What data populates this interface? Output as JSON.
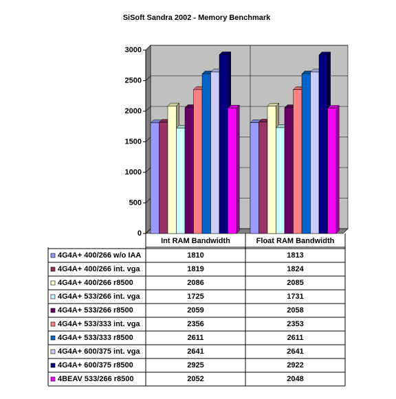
{
  "chart_data": {
    "type": "bar",
    "title": "SiSoft Sandra 2002 - Memory Benchmark",
    "categories": [
      "Int RAM Bandwidth",
      "Float RAM Bandwidth"
    ],
    "series": [
      {
        "name": "4G4A+ 400/266 w/o IAA",
        "color": "#9999ff",
        "values": [
          1810,
          1813
        ]
      },
      {
        "name": "4G4A+ 400/266 int. vga",
        "color": "#993366",
        "values": [
          1819,
          1824
        ]
      },
      {
        "name": "4G4A+ 400/266 r8500",
        "color": "#ffffcc",
        "values": [
          2086,
          2085
        ]
      },
      {
        "name": "4G4A+ 533/266 int. vga",
        "color": "#ccffff",
        "values": [
          1725,
          1731
        ]
      },
      {
        "name": "4G4A+ 533/266 r8500",
        "color": "#660066",
        "values": [
          2059,
          2058
        ]
      },
      {
        "name": "4G4A+ 533/333 int. vga",
        "color": "#ff8080",
        "values": [
          2356,
          2353
        ]
      },
      {
        "name": "4G4A+ 533/333 r8500",
        "color": "#0066cc",
        "values": [
          2611,
          2611
        ]
      },
      {
        "name": "4G4A+ 600/375 int. vga",
        "color": "#ccccff",
        "values": [
          2641,
          2641
        ]
      },
      {
        "name": "4G4A+ 600/375 r8500",
        "color": "#000080",
        "values": [
          2925,
          2922
        ]
      },
      {
        "name": "4BEAV 533/266 r8500",
        "color": "#ff00ff",
        "values": [
          2052,
          2048
        ]
      }
    ],
    "ylim": [
      0,
      3000
    ],
    "yticks": [
      0,
      500,
      1000,
      1500,
      2000,
      2500,
      3000
    ],
    "grid": true
  }
}
